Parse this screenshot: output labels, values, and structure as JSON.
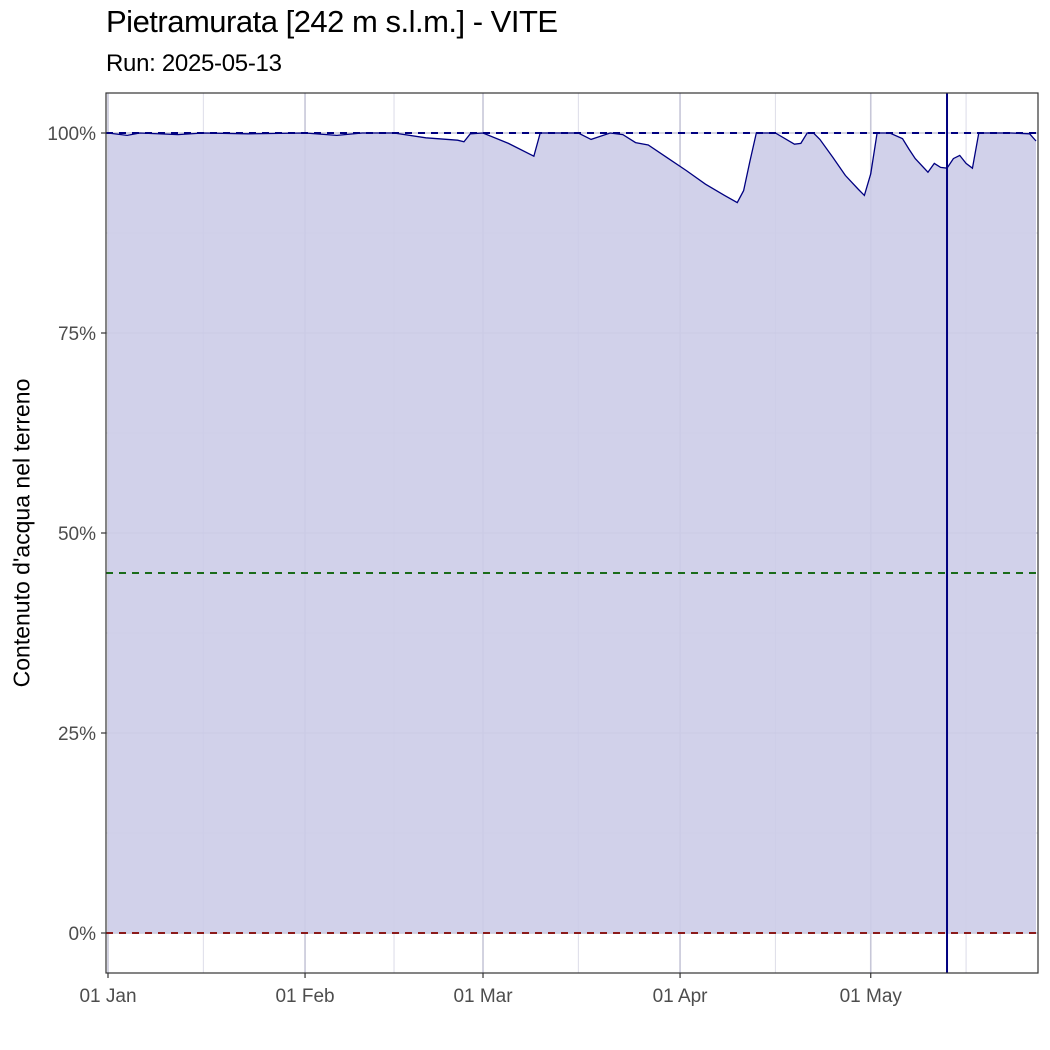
{
  "header": {
    "title": "Pietramurata [242 m s.l.m.] - VITE",
    "subtitle": "Run: 2025-05-13"
  },
  "colors": {
    "area_fill": "#ccccE8",
    "line": "#000080",
    "grid_major": "#c7c7d8",
    "grid_minor": "#dcdce8",
    "ref_100": "#000080",
    "ref_45": "#1a6b1a",
    "ref_0": "#8b1a1a",
    "current_date_line": "#000080"
  },
  "chart_data": {
    "type": "area",
    "title": "Pietramurata [242 m s.l.m.] - VITE",
    "subtitle": "Run: 2025-05-13",
    "xlabel": "",
    "ylabel": "Contenuto d'acqua nel terreno",
    "xlim": [
      "2025-01-01",
      "2025-05-27"
    ],
    "ylim": [
      -5,
      105
    ],
    "x_ticks": [
      {
        "date": "2025-01-01",
        "label": "01 Jan"
      },
      {
        "date": "2025-02-01",
        "label": "01 Feb"
      },
      {
        "date": "2025-03-01",
        "label": "01 Mar"
      },
      {
        "date": "2025-04-01",
        "label": "01 Apr"
      },
      {
        "date": "2025-05-01",
        "label": "01 May"
      }
    ],
    "y_ticks": [
      {
        "value": 0,
        "label": "0%"
      },
      {
        "value": 25,
        "label": "25%"
      },
      {
        "value": 50,
        "label": "50%"
      },
      {
        "value": 75,
        "label": "75%"
      },
      {
        "value": 100,
        "label": "100%"
      }
    ],
    "grid": true,
    "reference_lines": [
      {
        "value": 100,
        "style": "dashed",
        "color": "#000080"
      },
      {
        "value": 45,
        "style": "dashed",
        "color": "#1a6b1a"
      },
      {
        "value": 0,
        "style": "dashed",
        "color": "#8b1a1a"
      }
    ],
    "vertical_line": {
      "date": "2025-05-13"
    },
    "x": [
      "2025-01-01",
      "2025-01-04",
      "2025-01-06",
      "2025-01-12",
      "2025-01-16",
      "2025-01-23",
      "2025-02-01",
      "2025-02-06",
      "2025-02-10",
      "2025-02-15",
      "2025-02-20",
      "2025-02-25",
      "2025-02-26",
      "2025-02-27",
      "2025-03-01",
      "2025-03-05",
      "2025-03-09",
      "2025-03-10",
      "2025-03-16",
      "2025-03-18",
      "2025-03-21",
      "2025-03-23",
      "2025-03-25",
      "2025-03-27",
      "2025-03-30",
      "2025-04-02",
      "2025-04-05",
      "2025-04-08",
      "2025-04-10",
      "2025-04-11",
      "2025-04-12",
      "2025-04-13",
      "2025-04-14",
      "2025-04-16",
      "2025-04-19",
      "2025-04-20",
      "2025-04-21",
      "2025-04-22",
      "2025-04-23",
      "2025-04-25",
      "2025-04-27",
      "2025-04-29",
      "2025-04-30",
      "2025-05-01",
      "2025-05-02",
      "2025-05-03",
      "2025-05-04",
      "2025-05-06",
      "2025-05-07",
      "2025-05-08",
      "2025-05-10",
      "2025-05-11",
      "2025-05-12",
      "2025-05-13",
      "2025-05-14",
      "2025-05-15",
      "2025-05-16",
      "2025-05-17",
      "2025-05-18",
      "2025-05-19",
      "2025-05-20",
      "2025-05-21",
      "2025-05-23",
      "2025-05-26",
      "2025-05-27"
    ],
    "series": [
      {
        "values": [
          100,
          99.7,
          100,
          99.8,
          100,
          99.9,
          100,
          99.7,
          100,
          100,
          99.4,
          99.1,
          98.9,
          99.9,
          100,
          98.7,
          97.1,
          100,
          100,
          99.2,
          100,
          99.8,
          98.8,
          98.5,
          96.9,
          95.3,
          93.6,
          92.2,
          91.3,
          92.8,
          96.5,
          100,
          100,
          100,
          98.6,
          98.7,
          100,
          100,
          99.2,
          97,
          94.7,
          93,
          92.2,
          94.9,
          100,
          100,
          100,
          99.3,
          98,
          96.8,
          95.1,
          96.2,
          95.7,
          95.6,
          96.8,
          97.2,
          96.2,
          95.6,
          100,
          100,
          100,
          100,
          100,
          99.9,
          99
        ]
      }
    ]
  }
}
